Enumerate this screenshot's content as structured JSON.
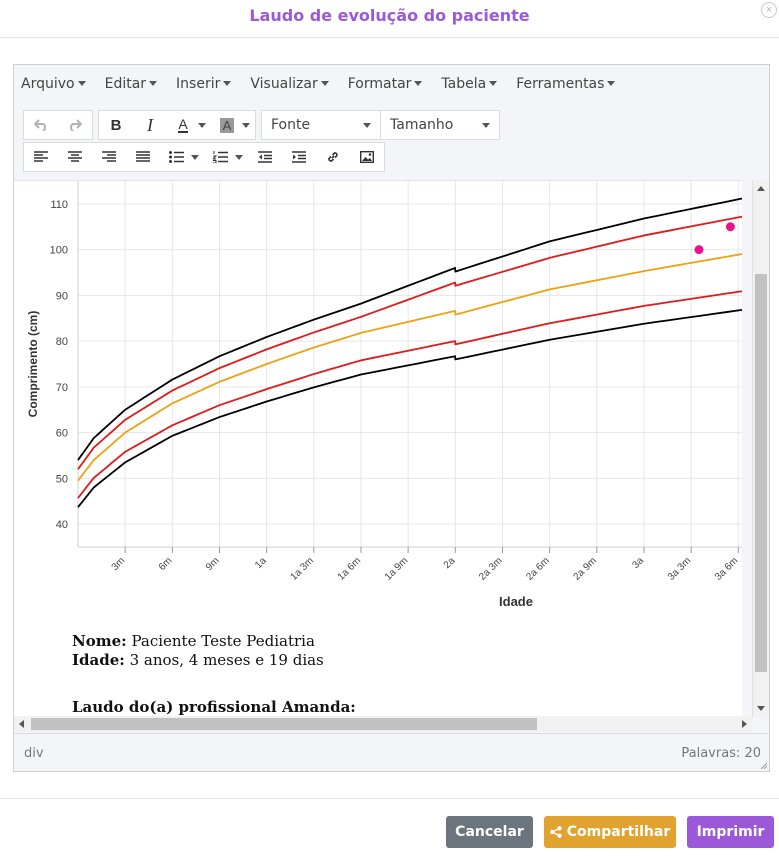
{
  "modal": {
    "title": "Laudo de evolução do paciente",
    "close_icon": "×"
  },
  "menubar": [
    "Arquivo",
    "Editar",
    "Inserir",
    "Visualizar",
    "Formatar",
    "Tabela",
    "Ferramentas"
  ],
  "toolbar": {
    "font_select": "Fonte",
    "size_select": "Tamanho"
  },
  "chart_data": {
    "type": "line",
    "ylabel": "Comprimento (cm)",
    "xlabel": "Idade",
    "ylim": [
      35,
      115
    ],
    "yticks": [
      40,
      50,
      60,
      70,
      80,
      90,
      100,
      110
    ],
    "xlim": [
      0,
      43
    ],
    "xticks": [
      3,
      6,
      9,
      12,
      15,
      18,
      21,
      24,
      27,
      30,
      33,
      36,
      39,
      42
    ],
    "xtick_labels": [
      "3m",
      "6m",
      "9m",
      "1a",
      "1a 3m",
      "1a 6m",
      "1a 9m",
      "2a",
      "2a 3m",
      "2a 6m",
      "2a 9m",
      "3a",
      "3a 3m",
      "3a 6m"
    ],
    "grid": true,
    "series": [
      {
        "color": "#000000",
        "x": [
          0,
          1,
          3,
          6,
          9,
          12,
          15,
          18,
          23.99,
          24,
          30,
          36,
          43
        ],
        "values": [
          54,
          58.8,
          65,
          71.6,
          76.7,
          80.9,
          84.7,
          88.2,
          96,
          95.2,
          101.8,
          106.8,
          111.7
        ]
      },
      {
        "color": "#e01a1a",
        "x": [
          0,
          1,
          3,
          6,
          9,
          12,
          15,
          18,
          23.99,
          24,
          30,
          36,
          43
        ],
        "values": [
          52,
          56.7,
          62.8,
          69.2,
          74.1,
          78.2,
          81.9,
          85.3,
          92.8,
          92.1,
          98.2,
          103.1,
          107.7
        ]
      },
      {
        "color": "#f0a010",
        "x": [
          0,
          1,
          3,
          6,
          9,
          12,
          15,
          18,
          23.99,
          24,
          30,
          36,
          43
        ],
        "values": [
          49.5,
          54,
          60,
          66.4,
          71.1,
          75,
          78.6,
          81.8,
          86.6,
          85.8,
          91.3,
          95.3,
          99.5
        ]
      },
      {
        "color": "#e01a1a",
        "x": [
          0,
          1,
          3,
          6,
          9,
          12,
          15,
          18,
          23.99,
          24,
          30,
          36,
          43
        ],
        "values": [
          45.7,
          50.1,
          55.8,
          61.6,
          66,
          69.5,
          72.8,
          75.8,
          80,
          79.3,
          83.9,
          87.7,
          91.3
        ]
      },
      {
        "color": "#000000",
        "x": [
          0,
          1,
          3,
          6,
          9,
          12,
          15,
          18,
          23.99,
          24,
          30,
          36,
          43
        ],
        "values": [
          43.7,
          48,
          53.5,
          59.3,
          63.4,
          66.8,
          69.9,
          72.7,
          76.7,
          76,
          80.3,
          83.8,
          87.2
        ]
      }
    ],
    "points": [
      {
        "x": 39.5,
        "y": 100,
        "color": "#ec128c"
      },
      {
        "x": 41.5,
        "y": 105,
        "color": "#ec128c"
      }
    ]
  },
  "info": {
    "name_label": "Nome:",
    "name_value": "Paciente Teste Pediatria",
    "age_label": "Idade:",
    "age_value": "3 anos, 4 meses e 19 dias",
    "report_label": "Laudo do(a) profissional Amanda:"
  },
  "statusbar": {
    "path": "div",
    "words": "Palavras: 20"
  },
  "buttons": {
    "cancel": "Cancelar",
    "share": "Compartilhar",
    "print": "Imprimir"
  },
  "colors": {
    "title": "#9b59d9",
    "cancel": "#6c757d",
    "share": "#e0a330",
    "print": "#9b59d9"
  }
}
